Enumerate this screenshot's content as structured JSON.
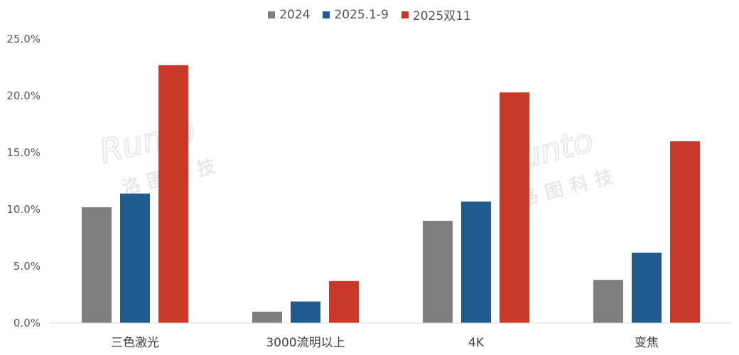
{
  "chart_data": {
    "type": "bar",
    "categories": [
      "三色激光",
      "3000流明以上",
      "4K",
      "变焦"
    ],
    "series": [
      {
        "name": "2024",
        "values": [
          10.2,
          1.0,
          9.0,
          3.8
        ],
        "color": "#7f7f7f"
      },
      {
        "name": "2025.1-9",
        "values": [
          11.4,
          1.9,
          10.7,
          6.2
        ],
        "color": "#1f5b8e"
      },
      {
        "name": "2025双11",
        "values": [
          22.7,
          3.7,
          20.3,
          16.0
        ],
        "color": "#c9392a"
      }
    ],
    "yticks": [
      "0.0%",
      "5.0%",
      "10.0%",
      "15.0%",
      "20.0%",
      "25.0%"
    ],
    "ylim": [
      0,
      25
    ],
    "legend_position": "top-center",
    "grid": false
  },
  "watermark": {
    "brand": "Runto",
    "cn": "洛图科技"
  }
}
